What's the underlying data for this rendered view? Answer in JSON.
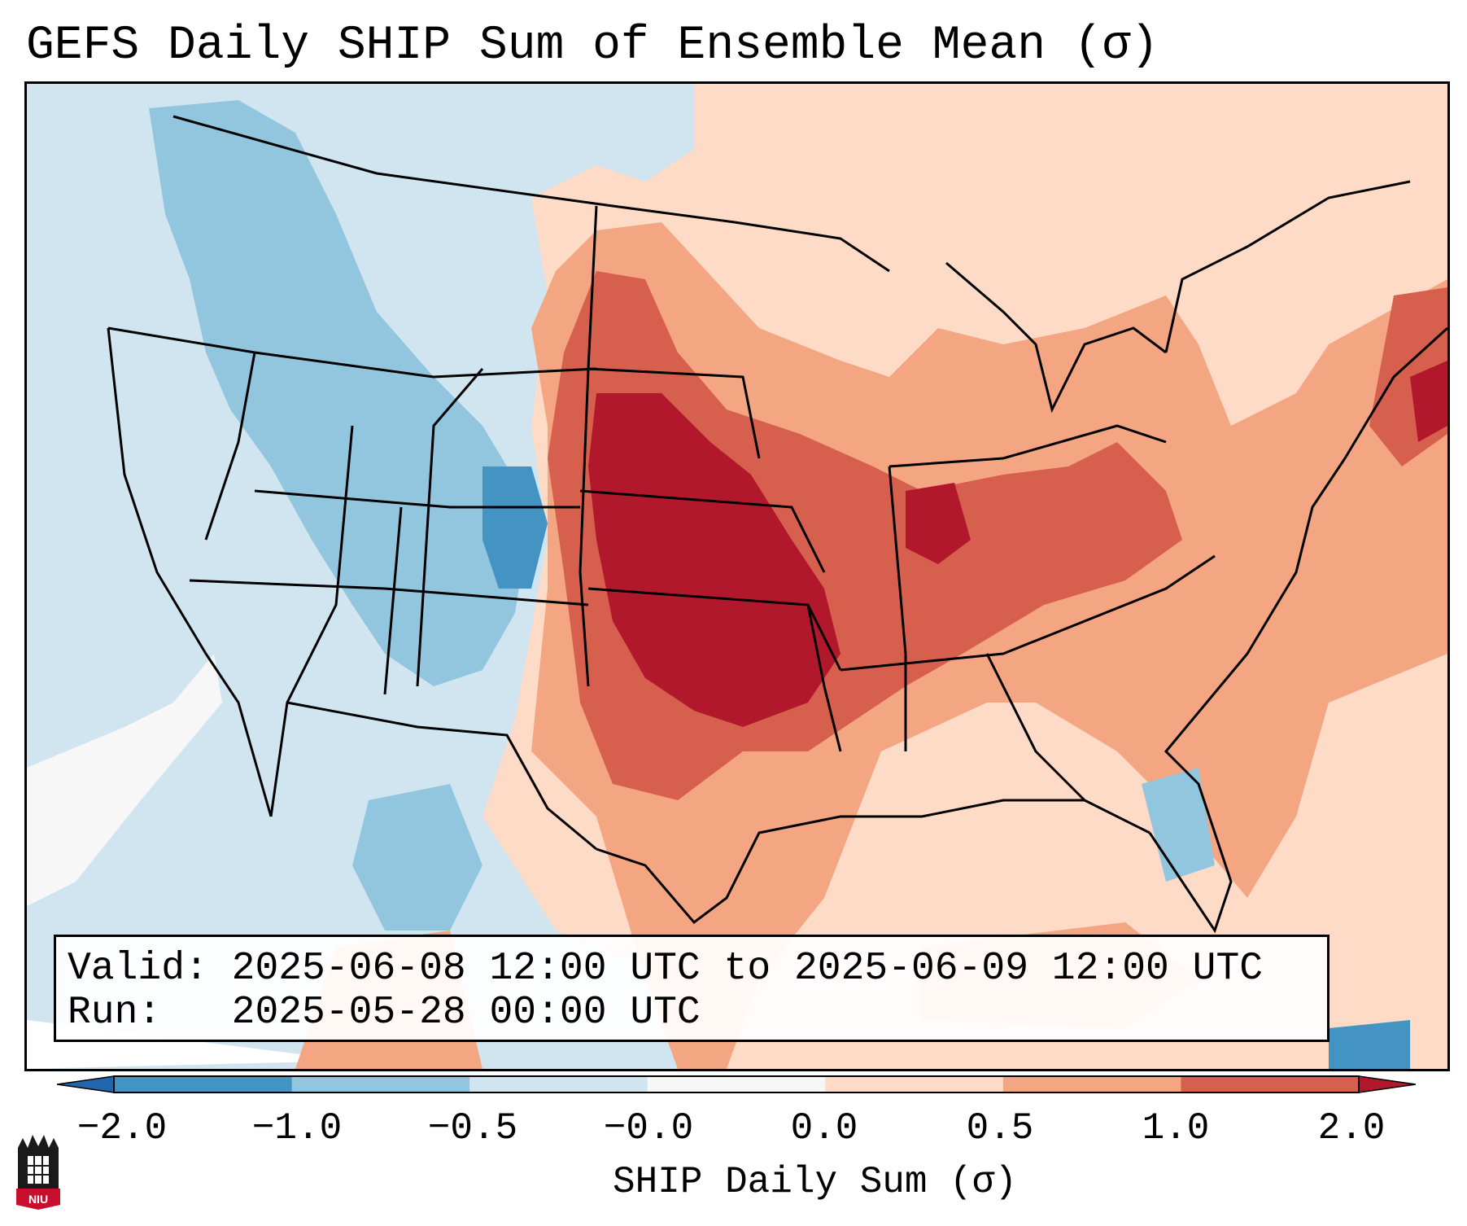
{
  "title": "GEFS Daily SHIP Sum of Ensemble Mean (σ)",
  "info": {
    "valid_label": "Valid:",
    "valid_value": "2025-06-08 12:00 UTC to 2025-06-09 12:00 UTC",
    "run_label": "Run:",
    "run_value": "2025-05-28 00:00 UTC"
  },
  "colorbar": {
    "label": "SHIP Daily Sum (σ)",
    "ticks": [
      "−2.0",
      "−1.0",
      "−0.5",
      "−0.0",
      "0.0",
      "0.5",
      "1.0",
      "2.0"
    ],
    "bins": [
      {
        "range": "< -2.0",
        "color": "#2166ac"
      },
      {
        "range": "-2.0 to -1.0",
        "color": "#4393c3"
      },
      {
        "range": "-1.0 to -0.5",
        "color": "#92c5de"
      },
      {
        "range": "-0.5 to -0.0",
        "color": "#d1e5f0"
      },
      {
        "range": "-0.0 to 0.0",
        "color": "#f7f7f7"
      },
      {
        "range": "0.0 to 0.5",
        "color": "#fddbc7"
      },
      {
        "range": "0.5 to 1.0",
        "color": "#f4a582"
      },
      {
        "range": "1.0 to 2.0",
        "color": "#d6604d"
      },
      {
        "range": "> 2.0",
        "color": "#b2182b"
      }
    ]
  },
  "logo": {
    "text": "NIU",
    "color": "#c8102e"
  }
}
